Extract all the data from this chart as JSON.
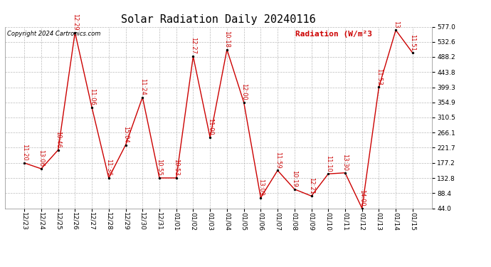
{
  "title": "Solar Radiation Daily 20240116",
  "copyright": "Copyright 2024 Cartronics.com",
  "legend_label": "Radiation (W/m²3",
  "ylim": [
    44.0,
    577.0
  ],
  "yticks": [
    44.0,
    88.4,
    132.8,
    177.2,
    221.7,
    266.1,
    310.5,
    354.9,
    399.3,
    443.8,
    488.2,
    532.6,
    577.0
  ],
  "dates": [
    "12/23",
    "12/24",
    "12/25",
    "12/26",
    "12/27",
    "12/28",
    "12/29",
    "12/30",
    "12/31",
    "01/01",
    "01/02",
    "01/03",
    "01/04",
    "01/05",
    "01/06",
    "01/07",
    "01/08",
    "01/09",
    "01/10",
    "01/11",
    "01/12",
    "01/13",
    "01/14",
    "01/15"
  ],
  "values": [
    177,
    160,
    215,
    560,
    340,
    133,
    230,
    370,
    133,
    133,
    490,
    252,
    510,
    355,
    75,
    155,
    100,
    80,
    145,
    148,
    44,
    400,
    567,
    500
  ],
  "time_labels": [
    "11:20",
    "13:06",
    "10:46",
    "12:29",
    "11:06",
    "11:36",
    "15:04",
    "11:24",
    "10:55",
    "10:53",
    "12:27",
    "11:00",
    "10:18",
    "12:00",
    "13:09",
    "11:59",
    "10:19",
    "12:21",
    "11:10",
    "13:30",
    "14:00",
    "11:53",
    "13",
    "11:51"
  ],
  "line_color": "#cc0000",
  "marker_color": "#000000",
  "bg_color": "#ffffff",
  "grid_color": "#bbbbbb",
  "title_fontsize": 11,
  "tick_fontsize": 6.5,
  "copyright_fontsize": 6,
  "legend_fontsize": 8,
  "annotation_fontsize": 6
}
